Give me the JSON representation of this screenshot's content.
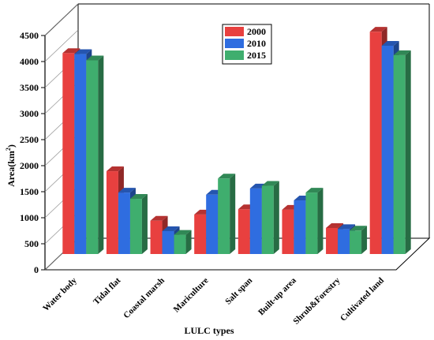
{
  "chart_data": {
    "type": "bar",
    "style": "3d-grouped",
    "xlabel": "LULC types",
    "ylabel": "Area(km",
    "ylabel_sup": "2",
    "ylabel_close": ")",
    "ylim": [
      0,
      4500
    ],
    "yticks": [
      0,
      500,
      1000,
      1500,
      2000,
      2500,
      3000,
      3500,
      4000,
      4500
    ],
    "legend_position": "top-right",
    "categories": [
      "Water body",
      "Tidal flat",
      "Coastal marsh",
      "Mariculture",
      "Salt span",
      "Built-up area",
      "Shrub&Forestry",
      "Cultivated land"
    ],
    "series": [
      {
        "name": "2000",
        "color": "#e8403f",
        "values": [
          3860,
          1590,
          640,
          760,
          860,
          850,
          500,
          4270
        ]
      },
      {
        "name": "2010",
        "color": "#2f6de0",
        "values": [
          3840,
          1180,
          440,
          1140,
          1260,
          1030,
          480,
          4000
        ]
      },
      {
        "name": "2015",
        "color": "#3fae6e",
        "values": [
          3720,
          1060,
          370,
          1450,
          1310,
          1180,
          450,
          3820
        ]
      }
    ]
  }
}
